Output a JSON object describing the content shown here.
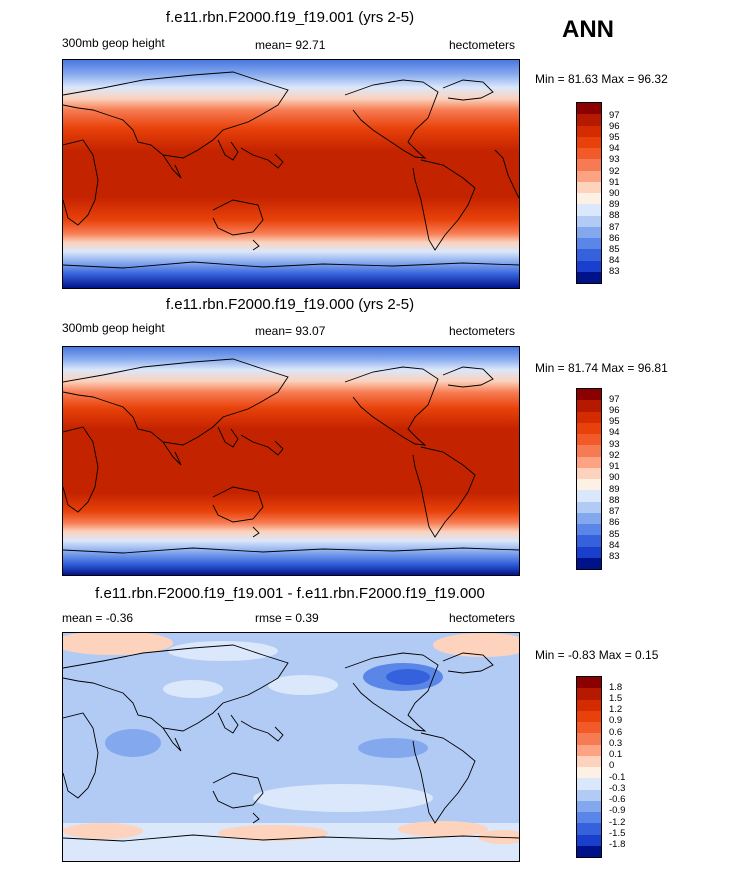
{
  "season": "ANN",
  "panels": [
    {
      "title": "f.e11.rbn.F2000.f19_f19.001 (yrs 2-5)",
      "left_label": "300mb geop height",
      "center_label": "mean=  92.71",
      "right_label": "hectometers",
      "minmax": "Min =  81.63 Max =  96.32",
      "colorbar": {
        "labels": [
          "97",
          "96",
          "95",
          "94",
          "93",
          "92",
          "91",
          "90",
          "89",
          "88",
          "87",
          "86",
          "85",
          "84",
          "83"
        ],
        "colors": [
          "#8b0000",
          "#b51a00",
          "#d42b00",
          "#e8410a",
          "#f25a2a",
          "#f77b52",
          "#fba383",
          "#fdd3bd",
          "#fdf0e4",
          "#dbe7fa",
          "#b2cbf5",
          "#84a8ee",
          "#5a86e8",
          "#3562dc",
          "#1a3fcc",
          "#00128a"
        ]
      }
    },
    {
      "title": "f.e11.rbn.F2000.f19_f19.000 (yrs 2-5)",
      "left_label": "300mb geop height",
      "center_label": "mean=  93.07",
      "right_label": "hectometers",
      "minmax": "Min =  81.74 Max =  96.81",
      "colorbar": {
        "labels": [
          "97",
          "96",
          "95",
          "94",
          "93",
          "92",
          "91",
          "90",
          "89",
          "88",
          "87",
          "86",
          "85",
          "84",
          "83"
        ],
        "colors": [
          "#8b0000",
          "#b51a00",
          "#d42b00",
          "#e8410a",
          "#f25a2a",
          "#f77b52",
          "#fba383",
          "#fdd3bd",
          "#fdf0e4",
          "#dbe7fa",
          "#b2cbf5",
          "#84a8ee",
          "#5a86e8",
          "#3562dc",
          "#1a3fcc",
          "#00128a"
        ]
      }
    },
    {
      "title": "f.e11.rbn.F2000.f19_f19.001 - f.e11.rbn.F2000.f19_f19.000",
      "left_label": "mean =  -0.36",
      "center_label": "rmse =   0.39",
      "right_label": "hectometers",
      "minmax": "Min =  -0.83 Max =   0.15",
      "colorbar": {
        "labels": [
          "1.8",
          "1.5",
          "1.2",
          "0.9",
          "0.6",
          "0.3",
          "0.1",
          "0",
          "-0.1",
          "-0.3",
          "-0.6",
          "-0.9",
          "-1.2",
          "-1.5",
          "-1.8"
        ],
        "colors": [
          "#8b0000",
          "#b51a00",
          "#d42b00",
          "#e8410a",
          "#f25a2a",
          "#f77b52",
          "#fba383",
          "#fdd3bd",
          "#fdf0e4",
          "#dbe7fa",
          "#b2cbf5",
          "#84a8ee",
          "#5a86e8",
          "#3562dc",
          "#1a3fcc",
          "#00128a"
        ]
      }
    }
  ]
}
